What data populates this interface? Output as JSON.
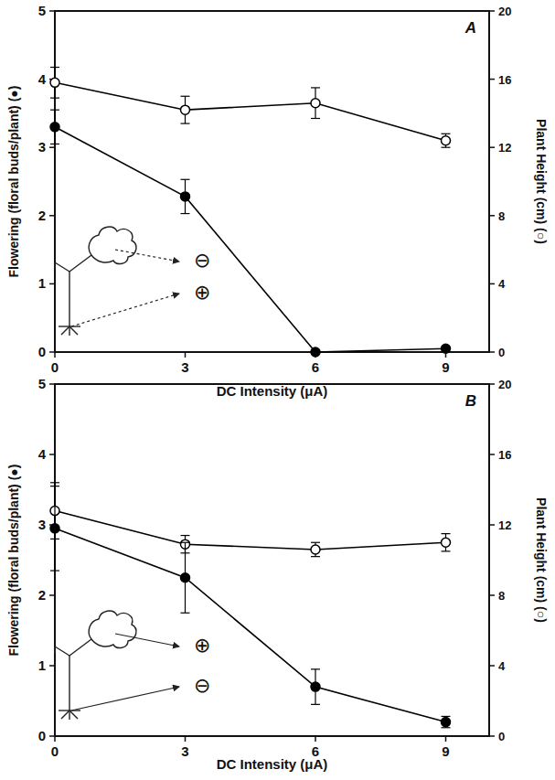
{
  "chart_data": [
    {
      "type": "line",
      "title": "A",
      "x_label": "DC Intensity (μA)",
      "y_label": "Flowering (floral buds/plant) (●)",
      "y2_label": "Plant Height (cm) (○)",
      "annotations": [
        "⊖",
        "⊕"
      ],
      "x": [
        0,
        3,
        6,
        9
      ],
      "xlim": [
        0,
        10
      ],
      "xticks": [
        0,
        3,
        6,
        9
      ],
      "ylim": [
        0,
        5
      ],
      "yticks": [
        0,
        1,
        2,
        3,
        4,
        5
      ],
      "y2lim": [
        0,
        20
      ],
      "y2ticks": [
        0,
        4,
        8,
        12,
        16,
        20
      ],
      "series": [
        {
          "color": "#000000",
          "marker": "filled_circle",
          "values": [
            3.3,
            2.28,
            0,
            0.05
          ],
          "errors": [
            0.25,
            0.25,
            0,
            0
          ]
        },
        {
          "color": "#000000",
          "marker": "open_circle",
          "axis": "y2",
          "values": [
            15.8,
            14.2,
            14.6,
            12.4
          ],
          "errors": [
            0.9,
            0.8,
            0.9,
            0.4
          ]
        }
      ]
    },
    {
      "type": "line",
      "title": "B",
      "x_label": "DC Intensity (μA)",
      "y_label": "Flowering (floral buds/plant) (●)",
      "y2_label": "Plant Height (cm) (○)",
      "annotations": [
        "⊕",
        "⊖"
      ],
      "x": [
        0,
        3,
        6,
        9
      ],
      "xlim": [
        0,
        10
      ],
      "xticks": [
        0,
        3,
        6,
        9
      ],
      "ylim": [
        0,
        5
      ],
      "yticks": [
        0,
        1,
        2,
        3,
        4,
        5
      ],
      "y2lim": [
        0,
        20
      ],
      "y2ticks": [
        0,
        4,
        8,
        12,
        16,
        20
      ],
      "series": [
        {
          "color": "#000000",
          "marker": "filled_circle",
          "values": [
            2.95,
            2.25,
            0.7,
            0.2
          ],
          "errors": [
            0.6,
            0.5,
            0.25,
            0.08
          ]
        },
        {
          "color": "#000000",
          "marker": "open_circle",
          "axis": "y2",
          "values": [
            12.8,
            10.9,
            10.6,
            11.0
          ],
          "errors": [
            1.6,
            0.5,
            0.4,
            0.5
          ]
        }
      ]
    }
  ]
}
